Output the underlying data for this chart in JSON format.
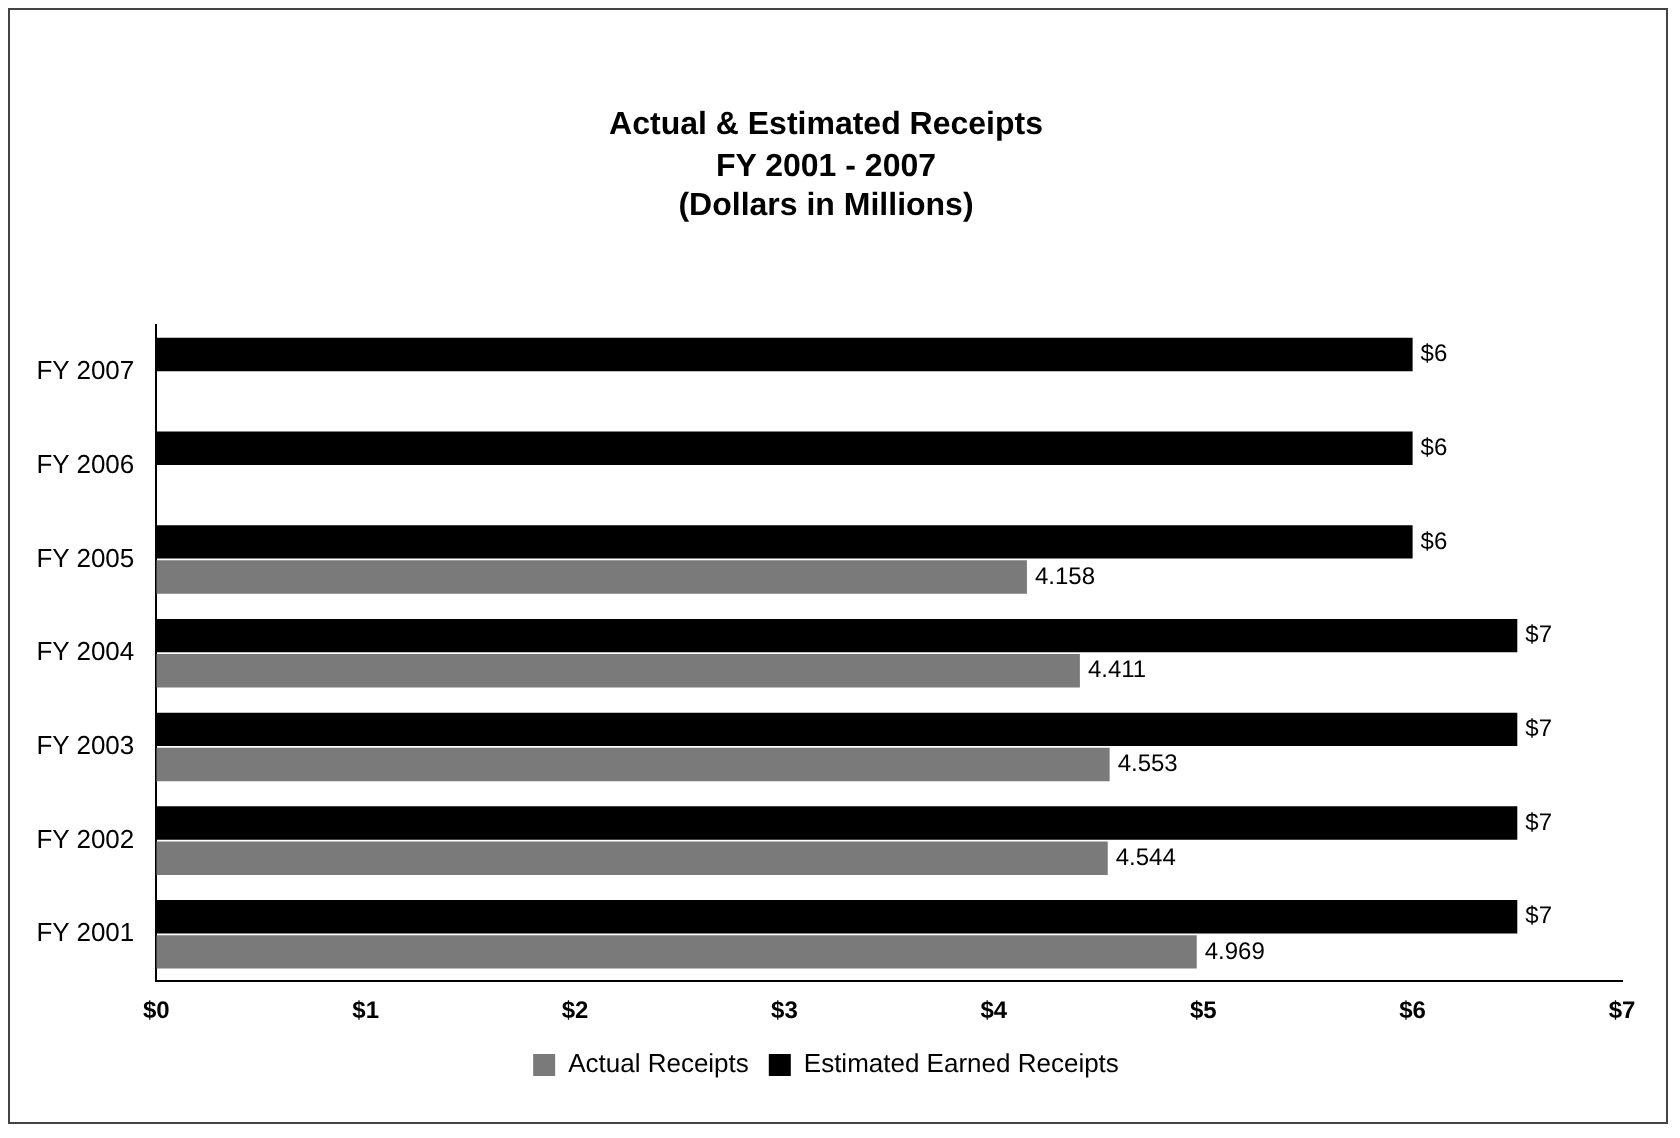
{
  "chart_data": {
    "type": "bar",
    "orientation": "horizontal",
    "title": "Actual & Estimated Receipts",
    "subtitle": "FY 2001 - 2007\n(Dollars in Millions)",
    "categories": [
      "FY 2007",
      "FY 2006",
      "FY 2005",
      "FY 2004",
      "FY 2003",
      "FY 2002",
      "FY 2001"
    ],
    "series": [
      {
        "name": "Actual Receipts",
        "color": "#7a7a7a",
        "values": [
          null,
          null,
          4.158,
          4.411,
          4.553,
          4.544,
          4.969
        ],
        "value_labels": [
          null,
          null,
          "4.158",
          "4.411",
          "4.553",
          "4.544",
          "4.969"
        ]
      },
      {
        "name": "Estimated Earned Receipts",
        "color": "#000000",
        "values": [
          6.0,
          6.0,
          6.0,
          6.5,
          6.5,
          6.5,
          6.5
        ],
        "value_labels": [
          "$6",
          "$6",
          "$6",
          "$7",
          "$7",
          "$7",
          "$7"
        ]
      }
    ],
    "xlim": [
      0,
      7
    ],
    "xticks": [
      {
        "value": 0,
        "label": "$0"
      },
      {
        "value": 1,
        "label": "$1"
      },
      {
        "value": 2,
        "label": "$2"
      },
      {
        "value": 3,
        "label": "$3"
      },
      {
        "value": 4,
        "label": "$4"
      },
      {
        "value": 5,
        "label": "$5"
      },
      {
        "value": 6,
        "label": "$6"
      },
      {
        "value": 7,
        "label": "$7"
      }
    ],
    "grid": false,
    "legend": "bottom"
  }
}
